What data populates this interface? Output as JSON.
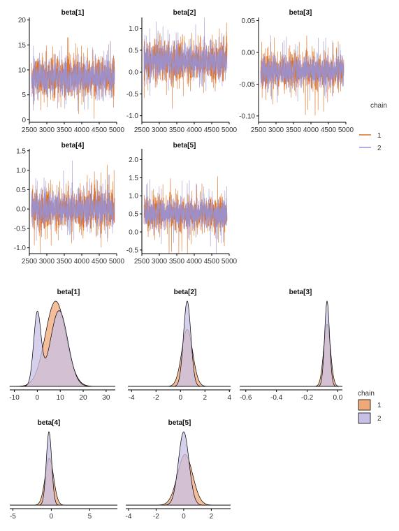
{
  "chart_data": [
    {
      "type": "line",
      "series": [
        {
          "name": "1",
          "color": "#e07020"
        },
        {
          "name": "2",
          "color": "#9a90d0"
        }
      ],
      "legend": {
        "title": "chain",
        "position": "right",
        "labels": [
          "1",
          "2"
        ]
      },
      "panels": [
        {
          "title": "beta[1]",
          "xlim": [
            2500,
            5000
          ],
          "ylim": [
            -0.5,
            20.5
          ],
          "xticks": [
            "2500",
            "3000",
            "3500",
            "4000",
            "4500",
            "5000"
          ],
          "yticks": [
            "0",
            "5",
            "10",
            "15",
            "20"
          ],
          "center": 8.5,
          "sd": 1.8,
          "spread": 3.0,
          "spike": 5.5
        },
        {
          "title": "beta[2]",
          "xlim": [
            2500,
            5000
          ],
          "ylim": [
            -1.15,
            1.25
          ],
          "xticks": [
            "2500",
            "3000",
            "3500",
            "4000",
            "4500",
            "5000"
          ],
          "yticks": [
            "-1.0",
            "-0.5",
            "0.0",
            "0.5",
            "1.0"
          ],
          "center": 0.25,
          "sd": 0.2,
          "spread": 0.35,
          "spike": 0.6
        },
        {
          "title": "beta[3]",
          "xlim": [
            2500,
            5000
          ],
          "ylim": [
            -0.11,
            0.055
          ],
          "xticks": [
            "2500",
            "3000",
            "3500",
            "4000",
            "4500",
            "5000"
          ],
          "yticks": [
            "-0.10",
            "-0.05",
            "0.00",
            "0.05"
          ],
          "center": -0.03,
          "sd": 0.012,
          "spread": 0.025,
          "spike": 0.045
        },
        {
          "title": "beta[4]",
          "xlim": [
            2500,
            5000
          ],
          "ylim": [
            -1.15,
            1.55
          ],
          "xticks": [
            "2500",
            "3000",
            "3500",
            "4000",
            "4500",
            "5000"
          ],
          "yticks": [
            "-1.0",
            "-0.5",
            "0.0",
            "0.5",
            "1.0",
            "1.5"
          ],
          "center": 0.0,
          "sd": 0.22,
          "spread": 0.4,
          "spike": 0.75
        },
        {
          "title": "beta[5]",
          "xlim": [
            2500,
            5000
          ],
          "ylim": [
            -0.6,
            2.3
          ],
          "xticks": [
            "2500",
            "3000",
            "3500",
            "4000",
            "4500",
            "5000"
          ],
          "yticks": [
            "-0.5",
            "0.0",
            "0.5",
            "1.0",
            "1.5",
            "2.0"
          ],
          "center": 0.5,
          "sd": 0.2,
          "spread": 0.35,
          "spike": 0.8
        }
      ]
    },
    {
      "type": "area",
      "series": [
        {
          "name": "1",
          "color": "#f0a878"
        },
        {
          "name": "2",
          "color": "#c8c0e6"
        }
      ],
      "legend": {
        "title": "chain",
        "position": "right",
        "labels": [
          "1",
          "2"
        ]
      },
      "panels": [
        {
          "title": "beta[1]",
          "xlim": [
            -12,
            34
          ],
          "xticks": [
            "-10",
            "0",
            "10",
            "20",
            "30"
          ],
          "chain1": [
            {
              "mu": 8,
              "sigma": 4.5,
              "w": 1.0
            }
          ],
          "chain2": [
            {
              "mu": 9.5,
              "sigma": 3.8,
              "w": 0.75
            },
            {
              "mu": 0,
              "sigma": 1.6,
              "w": 0.3
            }
          ]
        },
        {
          "title": "beta[2]",
          "xlim": [
            -4.3,
            4.1
          ],
          "xticks": [
            "-4",
            "-2",
            "0",
            "2",
            "4"
          ],
          "chain1": [
            {
              "mu": 0.55,
              "sigma": 0.45,
              "w": 1.0
            }
          ],
          "chain2": [
            {
              "mu": 0.55,
              "sigma": 0.3,
              "w": 1.0
            }
          ]
        },
        {
          "title": "beta[3]",
          "xlim": [
            -0.64,
            0.03
          ],
          "xticks": [
            "-0.6",
            "-0.4",
            "-0.2",
            "0.0"
          ],
          "chain1": [
            {
              "mu": -0.07,
              "sigma": 0.022,
              "w": 1.0
            }
          ],
          "chain2": [
            {
              "mu": -0.07,
              "sigma": 0.016,
              "w": 1.0
            }
          ]
        },
        {
          "title": "beta[4]",
          "xlim": [
            -5.4,
            8.6
          ],
          "xticks": [
            "-5",
            "0",
            "5"
          ],
          "chain1": [
            {
              "mu": -0.25,
              "sigma": 0.55,
              "w": 1.0
            }
          ],
          "chain2": [
            {
              "mu": -0.3,
              "sigma": 0.35,
              "w": 1.0
            }
          ]
        },
        {
          "title": "beta[5]",
          "xlim": [
            -4.2,
            3.4
          ],
          "xticks": [
            "-4",
            "-2",
            "0",
            "2"
          ],
          "chain1": [
            {
              "mu": 0.1,
              "sigma": 0.55,
              "w": 1.0
            }
          ],
          "chain2": [
            {
              "mu": 0.0,
              "sigma": 0.38,
              "w": 1.0
            }
          ]
        }
      ]
    }
  ]
}
